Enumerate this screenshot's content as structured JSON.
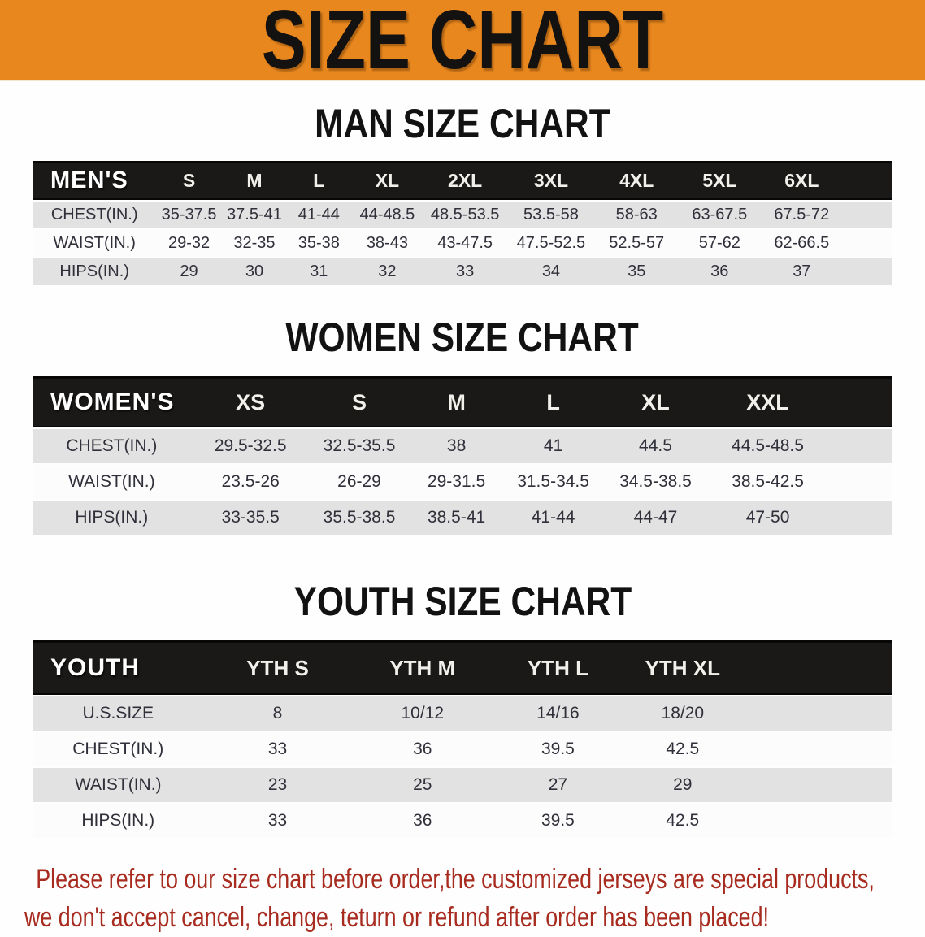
{
  "banner": {
    "title": "SIZE CHART",
    "bg_color": "#E8871E"
  },
  "tables": {
    "mens": {
      "heading": "MAN SIZE CHART",
      "corner_label": "MEN'S",
      "sizes": [
        "S",
        "M",
        "L",
        "XL",
        "2XL",
        "3XL",
        "4XL",
        "5XL",
        "6XL"
      ],
      "rows": [
        {
          "label": "CHEST(IN.)",
          "values": [
            "35-37.5",
            "37.5-41",
            "41-44",
            "44-48.5",
            "48.5-53.5",
            "53.5-58",
            "58-63",
            "63-67.5",
            "67.5-72"
          ]
        },
        {
          "label": "WAIST(IN.)",
          "values": [
            "29-32",
            "32-35",
            "35-38",
            "38-43",
            "43-47.5",
            "47.5-52.5",
            "52.5-57",
            "57-62",
            "62-66.5"
          ]
        },
        {
          "label": "HIPS(IN.)",
          "values": [
            "29",
            "30",
            "31",
            "32",
            "33",
            "34",
            "35",
            "36",
            "37"
          ]
        }
      ]
    },
    "womens": {
      "heading": "WOMEN SIZE CHART",
      "corner_label": "WOMEN'S",
      "sizes": [
        "XS",
        "S",
        "M",
        "L",
        "XL",
        "XXL"
      ],
      "rows": [
        {
          "label": "CHEST(IN.)",
          "values": [
            "29.5-32.5",
            "32.5-35.5",
            "38",
            "41",
            "44.5",
            "44.5-48.5"
          ]
        },
        {
          "label": "WAIST(IN.)",
          "values": [
            "23.5-26",
            "26-29",
            "29-31.5",
            "31.5-34.5",
            "34.5-38.5",
            "38.5-42.5"
          ]
        },
        {
          "label": "HIPS(IN.)",
          "values": [
            "33-35.5",
            "35.5-38.5",
            "38.5-41",
            "41-44",
            "44-47",
            "47-50"
          ]
        }
      ]
    },
    "youth": {
      "heading": "YOUTH SIZE CHART",
      "corner_label": "YOUTH",
      "sizes": [
        "YTH S",
        "YTH M",
        "YTH L",
        "YTH XL"
      ],
      "rows": [
        {
          "label": "U.S.SIZE",
          "values": [
            "8",
            "10/12",
            "14/16",
            "18/20"
          ]
        },
        {
          "label": "CHEST(IN.)",
          "values": [
            "33",
            "36",
            "39.5",
            "42.5"
          ]
        },
        {
          "label": "WAIST(IN.)",
          "values": [
            "23",
            "25",
            "27",
            "29"
          ]
        },
        {
          "label": "HIPS(IN.)",
          "values": [
            "33",
            "36",
            "39.5",
            "42.5"
          ]
        }
      ]
    }
  },
  "footer": {
    "line1": "Please refer to our size chart before order,the customized jerseys are special products,",
    "line2": "we don't accept cancel, change, teturn or refund after order has been placed!"
  },
  "colors": {
    "banner_bg": "#E8871E",
    "banner_text": "#141210",
    "header_bar": "#1B1917",
    "header_text": "#F2F0EA",
    "row_shade": "#E2E2E2",
    "row_light": "#FCFCFC",
    "body_text": "#30303A",
    "heading_text": "#121212",
    "notice_text": "#A72B1F"
  }
}
